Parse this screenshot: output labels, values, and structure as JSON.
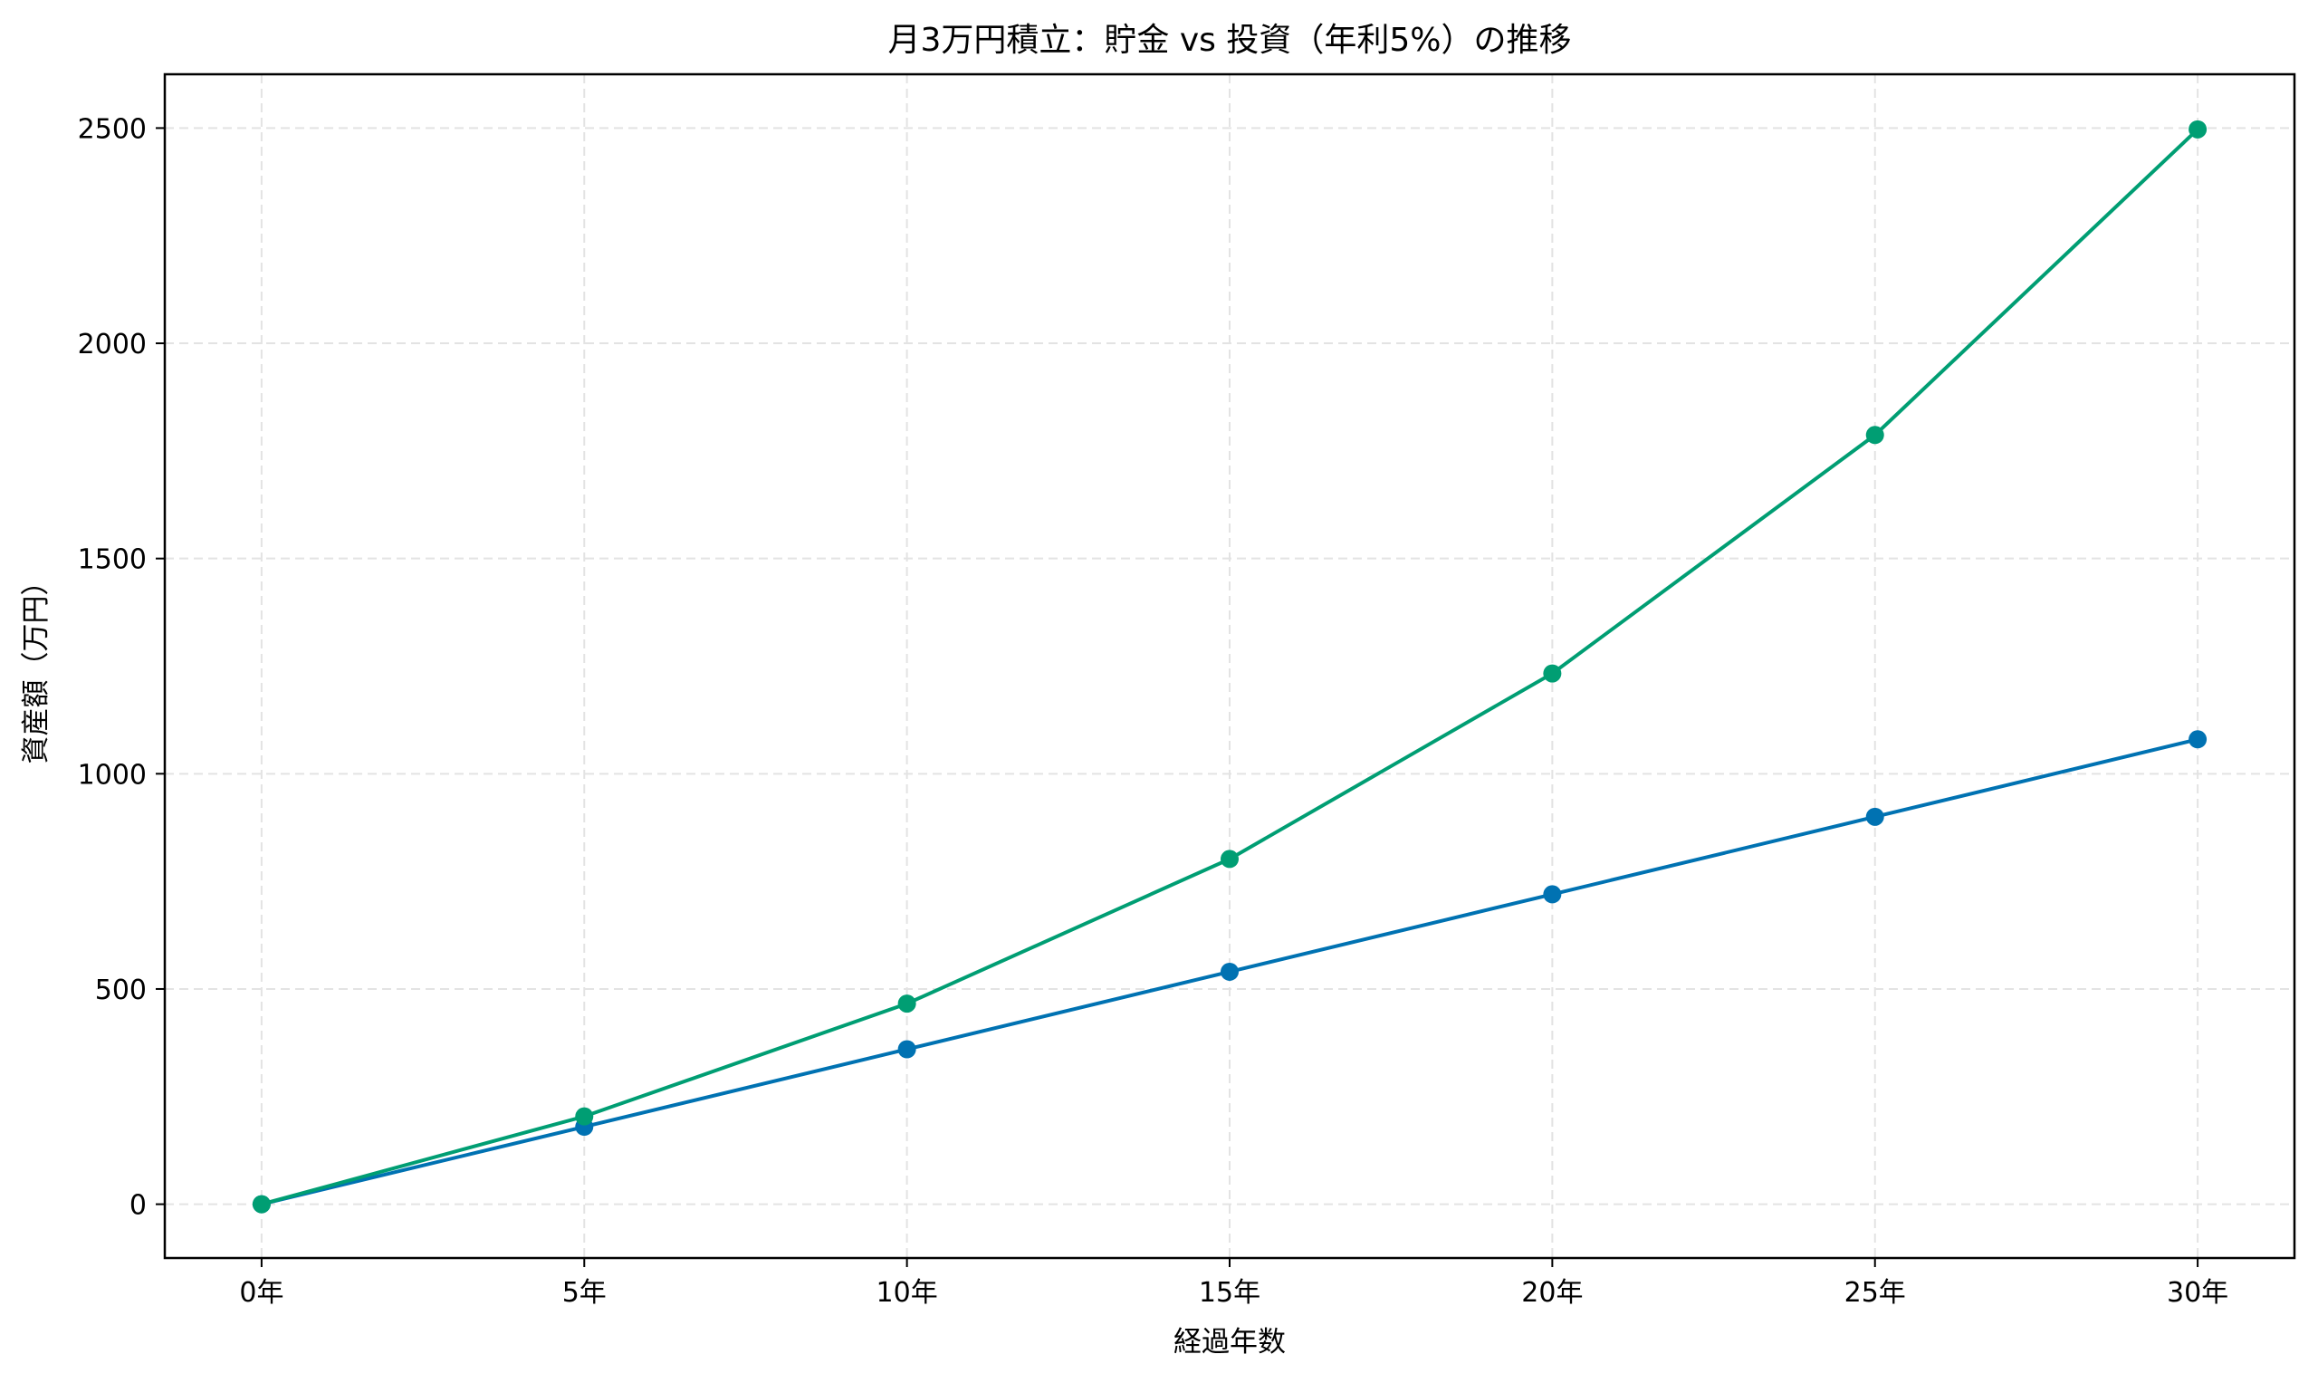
{
  "chart_data": {
    "type": "line",
    "title": "月3万円積立：貯金 vs 投資（年利5%）の推移",
    "xlabel": "経過年数",
    "ylabel": "資産額（万円）",
    "x": [
      0,
      5,
      10,
      15,
      20,
      25,
      30
    ],
    "x_tick_labels": [
      "0年",
      "5年",
      "10年",
      "15年",
      "20年",
      "25年",
      "30年"
    ],
    "y_ticks": [
      0,
      500,
      1000,
      1500,
      2000,
      2500
    ],
    "xlim": [
      -1.5,
      31.5
    ],
    "ylim": [
      -125,
      2625
    ],
    "grid": true,
    "series": [
      {
        "values": [
          0,
          180,
          360,
          540,
          720,
          900,
          1080
        ],
        "color": "#0072B2",
        "marker": "circle"
      },
      {
        "values": [
          0,
          204,
          466,
          802,
          1233,
          1787,
          2497
        ],
        "color": "#009E73",
        "marker": "circle"
      }
    ]
  }
}
